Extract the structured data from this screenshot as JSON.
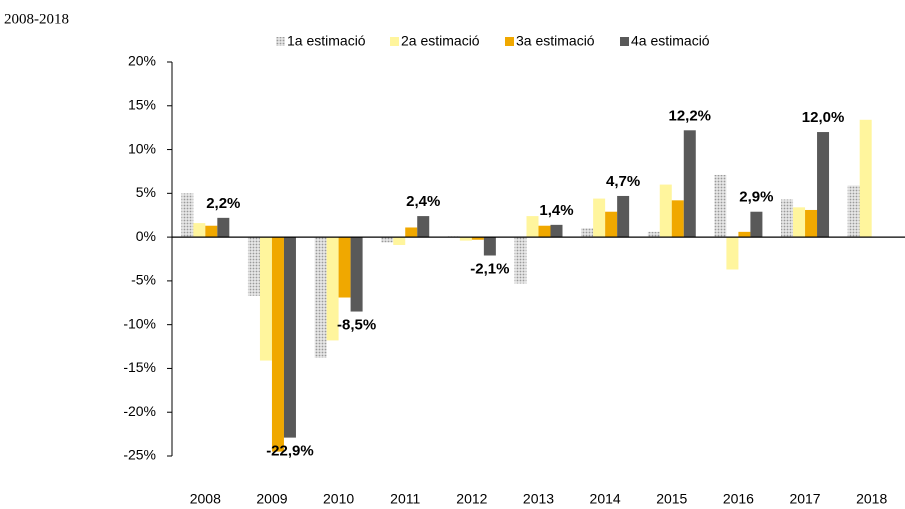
{
  "chart_data": {
    "type": "bar",
    "title": "2008-2018",
    "categories": [
      "2008",
      "2009",
      "2010",
      "2011",
      "2012",
      "2013",
      "2014",
      "2015",
      "2016",
      "2017",
      "2018"
    ],
    "series": [
      {
        "name": "1a estimació",
        "color": "#c4c4c4",
        "values": [
          5.0,
          -6.7,
          -13.8,
          -0.6,
          0.1,
          -5.3,
          1.0,
          0.6,
          7.1,
          4.3,
          5.9
        ]
      },
      {
        "name": "2a estimació",
        "color": "#fff59d",
        "values": [
          1.6,
          -14.1,
          -11.8,
          -0.9,
          -0.4,
          2.4,
          4.4,
          6.0,
          -3.7,
          3.4,
          13.4
        ]
      },
      {
        "name": "3a estimació",
        "color": "#f0a800",
        "values": [
          1.3,
          -24.5,
          -6.9,
          1.1,
          -0.3,
          1.3,
          2.9,
          4.2,
          0.6,
          3.1,
          null
        ]
      },
      {
        "name": "4a estimació",
        "color": "#595959",
        "values": [
          2.2,
          -22.9,
          -8.5,
          2.4,
          -2.1,
          1.4,
          4.7,
          12.2,
          2.9,
          12.0,
          null
        ],
        "value_labels": [
          "2,2%",
          "-22,9%",
          "-8,5%",
          "2,4%",
          "-2,1%",
          "1,4%",
          "4,7%",
          "12,2%",
          "2,9%",
          "12,0%",
          null
        ]
      }
    ],
    "ylim": [
      -25,
      20
    ],
    "yticks": [
      {
        "value": -25,
        "label": "-25%"
      },
      {
        "value": -20,
        "label": "-20%"
      },
      {
        "value": -15,
        "label": "-15%"
      },
      {
        "value": -10,
        "label": "-10%"
      },
      {
        "value": -5,
        "label": "-5%"
      },
      {
        "value": 0,
        "label": "0%"
      },
      {
        "value": 5,
        "label": "5%"
      },
      {
        "value": 10,
        "label": "10%"
      },
      {
        "value": 15,
        "label": "15%"
      },
      {
        "value": 20,
        "label": "20%"
      }
    ],
    "legend": "top",
    "grid": false
  }
}
